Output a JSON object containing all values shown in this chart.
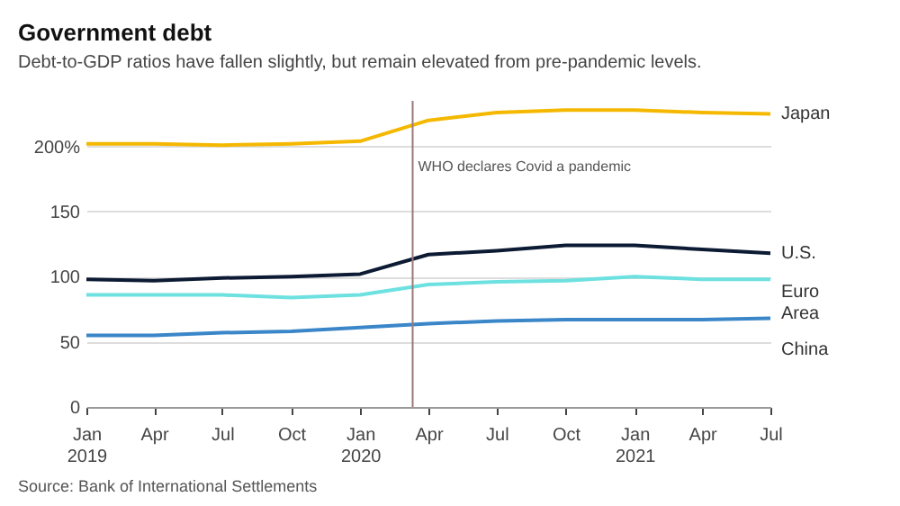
{
  "chart_data": {
    "type": "line",
    "title": "Government debt",
    "subtitle": "Debt-to-GDP ratios have fallen slightly, but remain elevated from pre-pandemic levels.",
    "x": [
      "2019-01",
      "2019-04",
      "2019-07",
      "2019-10",
      "2020-01",
      "2020-04",
      "2020-07",
      "2020-10",
      "2021-01",
      "2021-04",
      "2021-07"
    ],
    "series": [
      {
        "name": "Japan",
        "color": "#f5b800",
        "values": [
          202,
          202,
          201,
          202,
          204,
          220,
          226,
          228,
          228,
          226,
          225
        ]
      },
      {
        "name": "U.S.",
        "color": "#0c1a33",
        "values": [
          98,
          97,
          99,
          100,
          102,
          117,
          120,
          124,
          124,
          121,
          118
        ]
      },
      {
        "name": "Euro Area",
        "color": "#6de0e0",
        "values": [
          86,
          86,
          86,
          84,
          86,
          94,
          96,
          97,
          100,
          98,
          98
        ]
      },
      {
        "name": "China",
        "color": "#3a86c8",
        "values": [
          55,
          55,
          57,
          58,
          61,
          64,
          66,
          67,
          67,
          67,
          68
        ]
      }
    ],
    "xlim": [
      "2019-01",
      "2021-07"
    ],
    "xticks": [
      {
        "value": "2019-01",
        "label": "Jan 2019"
      },
      {
        "value": "2019-04",
        "label": "Apr"
      },
      {
        "value": "2019-07",
        "label": "Jul"
      },
      {
        "value": "2019-10",
        "label": "Oct"
      },
      {
        "value": "2020-01",
        "label": "Jan 2020"
      },
      {
        "value": "2020-04",
        "label": "Apr"
      },
      {
        "value": "2020-07",
        "label": "Jul"
      },
      {
        "value": "2020-10",
        "label": "Oct"
      },
      {
        "value": "2021-01",
        "label": "Jan 2021"
      },
      {
        "value": "2021-04",
        "label": "Apr"
      },
      {
        "value": "2021-07",
        "label": "Jul"
      }
    ],
    "ylim": [
      0,
      235
    ],
    "yticks": [
      0,
      50,
      100,
      150,
      {
        "value": 200,
        "label": "200%"
      }
    ],
    "grid": "y",
    "legend": false,
    "line_style": "solid",
    "marker": "none",
    "ref_lines": [
      {
        "axis": "x",
        "value": "2020-03-11",
        "label": "WHO declares Covid a pandemic",
        "color": "#9b7b78"
      }
    ],
    "annotations": [
      "Source: Bank of International Settlements"
    ]
  }
}
